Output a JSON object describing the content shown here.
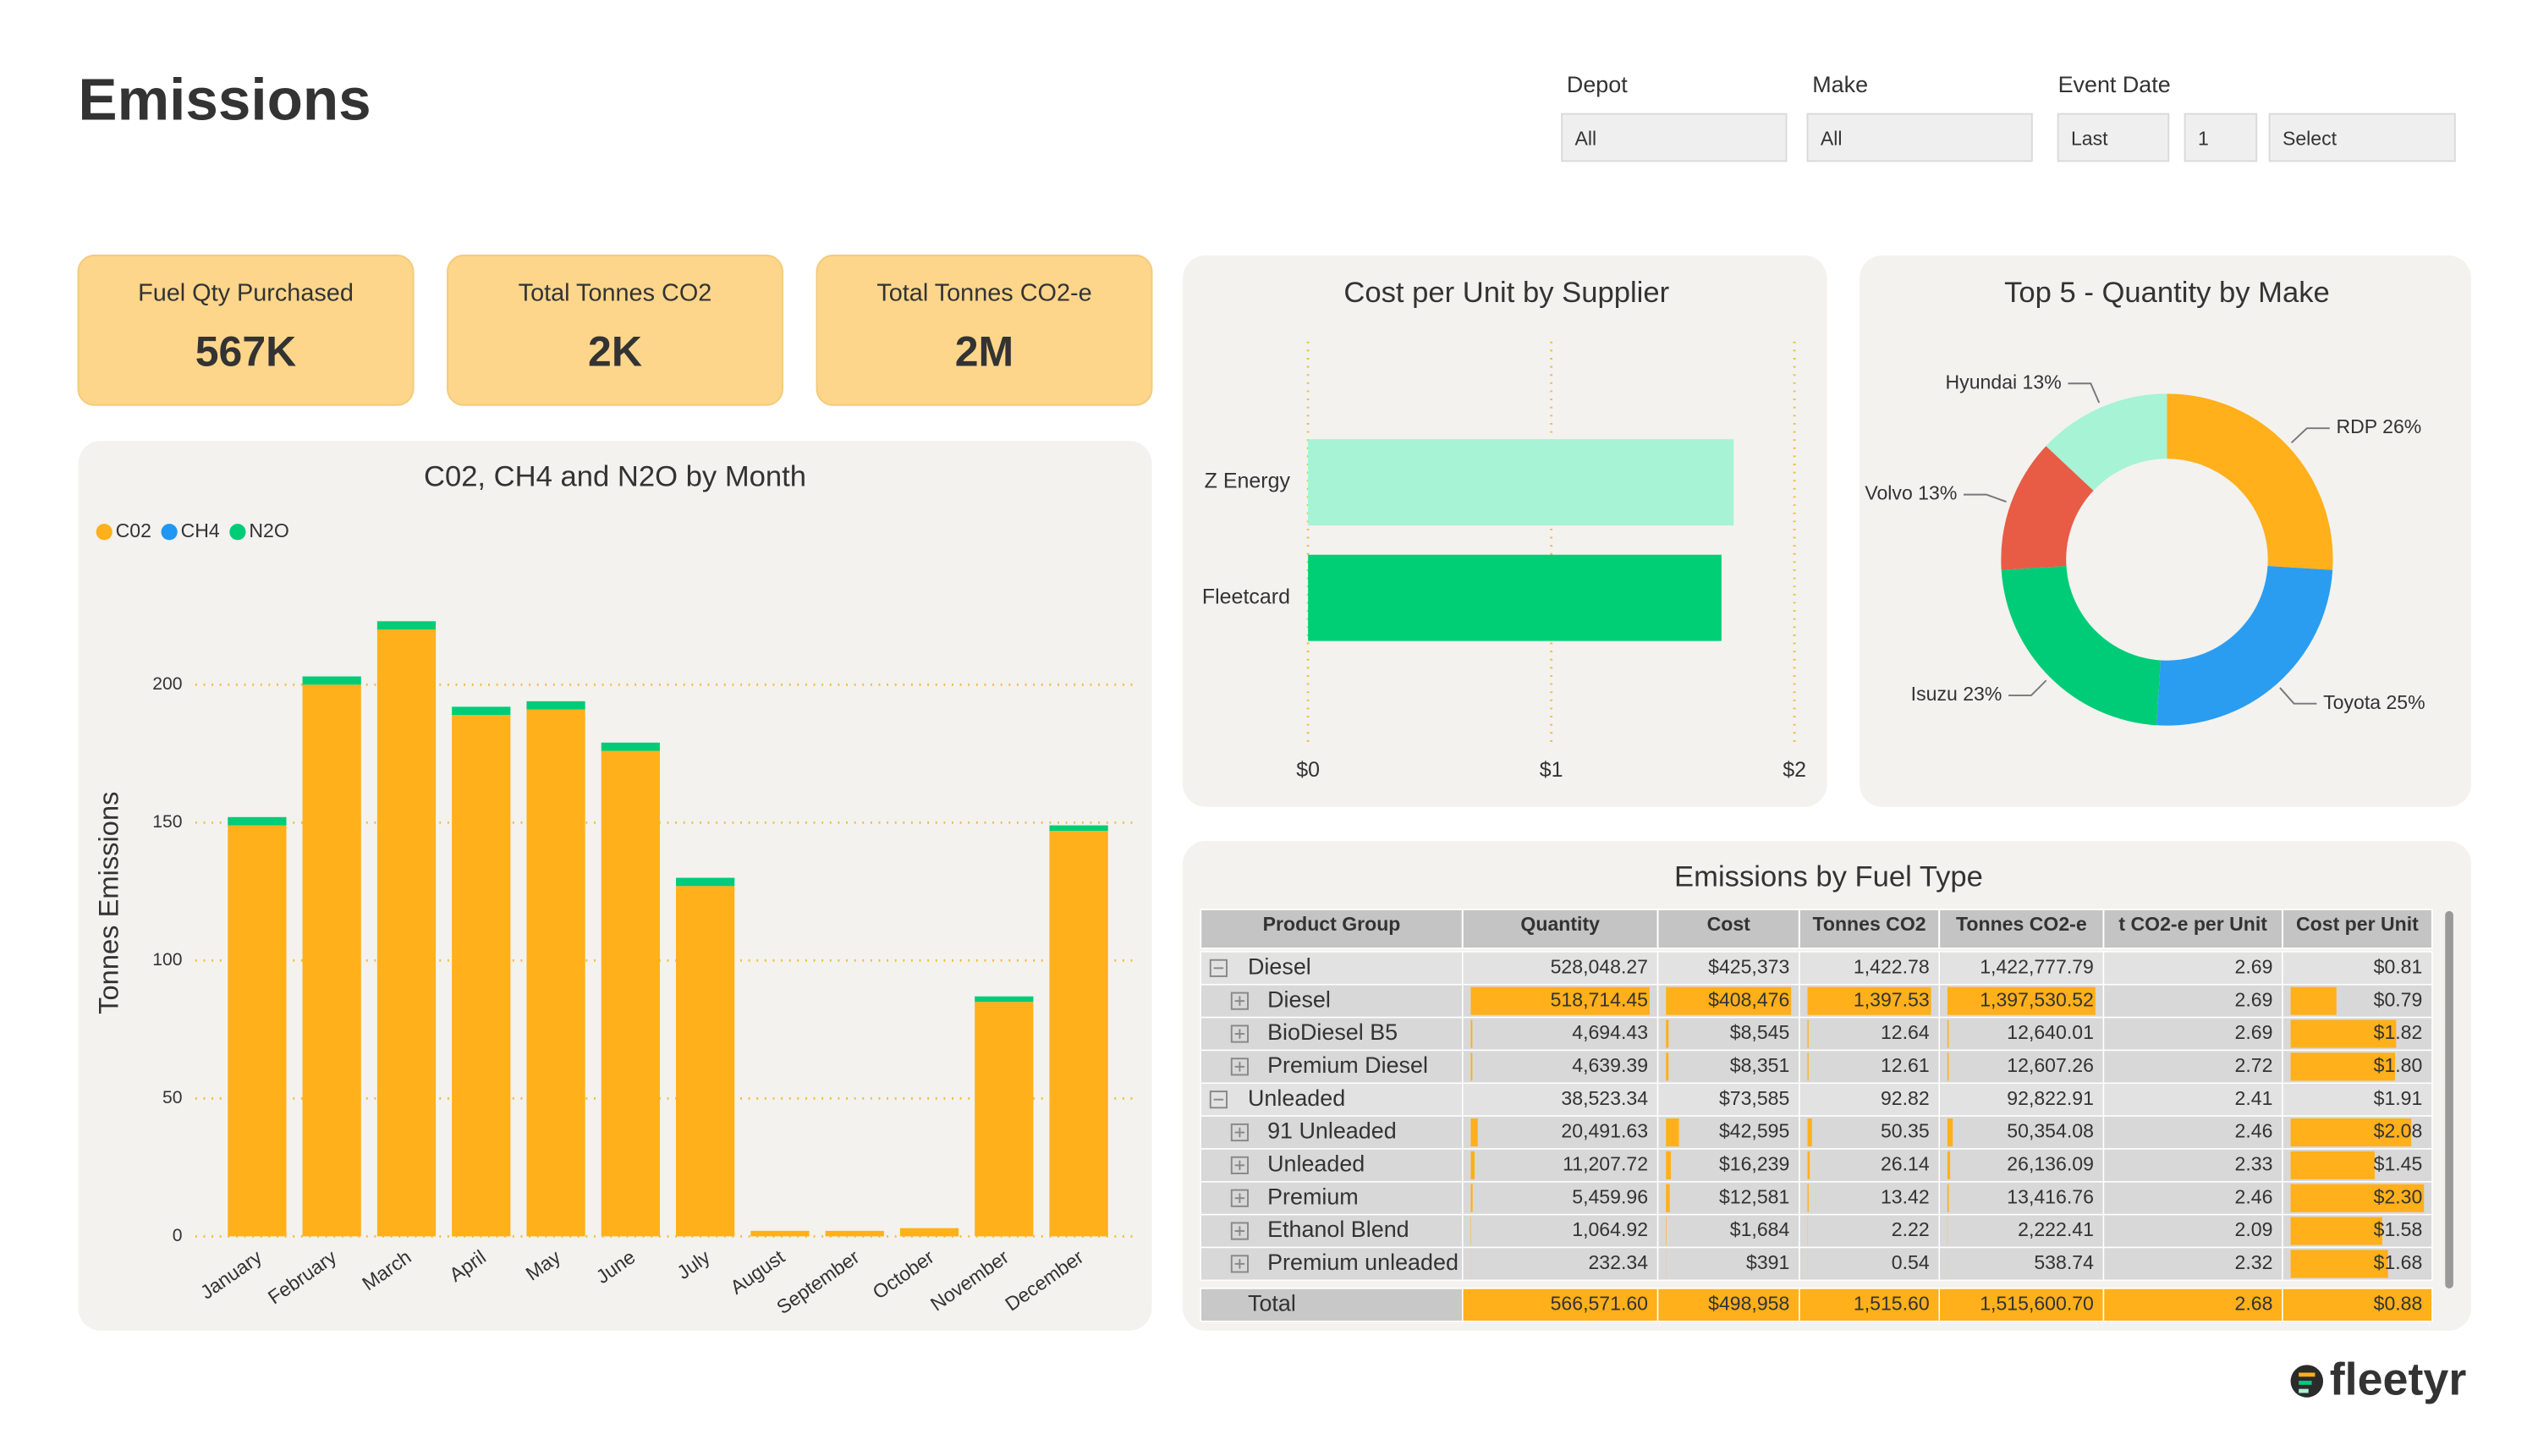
{
  "header": {
    "title": "Emissions"
  },
  "filters": [
    {
      "label": "Depot",
      "fields": [
        "All"
      ]
    },
    {
      "label": "Make",
      "fields": [
        "All"
      ]
    },
    {
      "label": "Event Date",
      "fields": [
        "Last",
        "1",
        "Select"
      ]
    }
  ],
  "kpis": [
    {
      "label": "Fuel Qty Purchased",
      "value": "567K"
    },
    {
      "label": "Total Tonnes CO2",
      "value": "2K"
    },
    {
      "label": "Total Tonnes CO2-e",
      "value": "2M"
    }
  ],
  "chart_data": [
    {
      "type": "bar",
      "stacked": true,
      "title": "C02, CH4 and N2O by Month",
      "y_label": "Tonnes Emissions",
      "categories": [
        "January",
        "February",
        "March",
        "April",
        "May",
        "June",
        "July",
        "August",
        "September",
        "October",
        "November",
        "December"
      ],
      "series": [
        {
          "name": "C02",
          "color": "#FFB01A",
          "values": [
            149,
            200,
            220,
            189,
            191,
            176,
            127,
            2,
            2,
            3,
            85,
            147
          ]
        },
        {
          "name": "CH4",
          "color": "#2196F3",
          "values": [
            0,
            0,
            0,
            0,
            0,
            0,
            0,
            0,
            0,
            0,
            0,
            0
          ]
        },
        {
          "name": "N2O",
          "color": "#00CC77",
          "values": [
            3,
            3,
            3,
            3,
            3,
            3,
            3,
            0,
            0,
            0,
            2,
            2
          ]
        }
      ],
      "ylim": [
        0,
        230
      ],
      "yticks": [
        0,
        50,
        100,
        150,
        200
      ],
      "grid": true,
      "legend": "top-left"
    },
    {
      "type": "barh",
      "title": "Cost per Unit by Supplier",
      "categories": [
        "Z Energy",
        "Fleetcard"
      ],
      "values": [
        1.75,
        1.7
      ],
      "colors": [
        "#A6F3D5",
        "#00CF75"
      ],
      "xlim": [
        0,
        2
      ],
      "xticks": [
        {
          "value": 0,
          "label": "$0"
        },
        {
          "value": 1,
          "label": "$1"
        },
        {
          "value": 2,
          "label": "$2"
        }
      ],
      "grid": true
    },
    {
      "type": "donut",
      "title": "Top 5 - Quantity by Make",
      "categories": [
        "RDP",
        "Toyota",
        "Isuzu",
        "Volvo",
        "Hyundai"
      ],
      "values": [
        26,
        25,
        23,
        13,
        13
      ],
      "value_labels": [
        "RDP 26%",
        "Toyota 25%",
        "Isuzu 23%",
        "Volvo 13%",
        "Hyundai 13%"
      ],
      "colors": [
        "#FFB01A",
        "#2A9DF0",
        "#00CC77",
        "#E85B45",
        "#A6F3D5"
      ]
    }
  ],
  "table": {
    "title": "Emissions by Fuel Type",
    "columns": [
      "Product Group",
      "Quantity",
      "Cost",
      "Tonnes CO2",
      "Tonnes CO2-e",
      "t CO2-e per Unit",
      "Cost per Unit"
    ],
    "groups": [
      {
        "cells": [
          "Diesel",
          "528,048.27",
          "$425,373",
          "1,422.78",
          "1,422,777.79",
          "2.69",
          "$0.81"
        ],
        "children": [
          [
            "Diesel",
            "518,714.45",
            "$408,476",
            "1,397.53",
            "1,397,530.52",
            "2.69",
            "$0.79"
          ],
          [
            "BioDiesel B5",
            "4,694.43",
            "$8,545",
            "12.64",
            "12,640.01",
            "2.69",
            "$1.82"
          ],
          [
            "Premium Diesel",
            "4,639.39",
            "$8,351",
            "12.61",
            "12,607.26",
            "2.72",
            "$1.80"
          ]
        ]
      },
      {
        "cells": [
          "Unleaded",
          "38,523.34",
          "$73,585",
          "92.82",
          "92,822.91",
          "2.41",
          "$1.91"
        ],
        "children": [
          [
            "91 Unleaded",
            "20,491.63",
            "$42,595",
            "50.35",
            "50,354.08",
            "2.46",
            "$2.08"
          ],
          [
            "Unleaded",
            "11,207.72",
            "$16,239",
            "26.14",
            "26,136.09",
            "2.33",
            "$1.45"
          ],
          [
            "Premium",
            "5,459.96",
            "$12,581",
            "13.42",
            "13,416.76",
            "2.46",
            "$2.30"
          ],
          [
            "Ethanol Blend",
            "1,064.92",
            "$1,684",
            "2.22",
            "2,222.41",
            "2.09",
            "$1.58"
          ],
          [
            "Premium unleaded",
            "232.34",
            "$391",
            "0.54",
            "538.74",
            "2.32",
            "$1.68"
          ]
        ]
      }
    ],
    "total": [
      "Total",
      "566,571.60",
      "$498,958",
      "1,515.60",
      "1,515,600.70",
      "2.68",
      "$0.88"
    ]
  },
  "footer": {
    "logo": "fleetyr"
  }
}
